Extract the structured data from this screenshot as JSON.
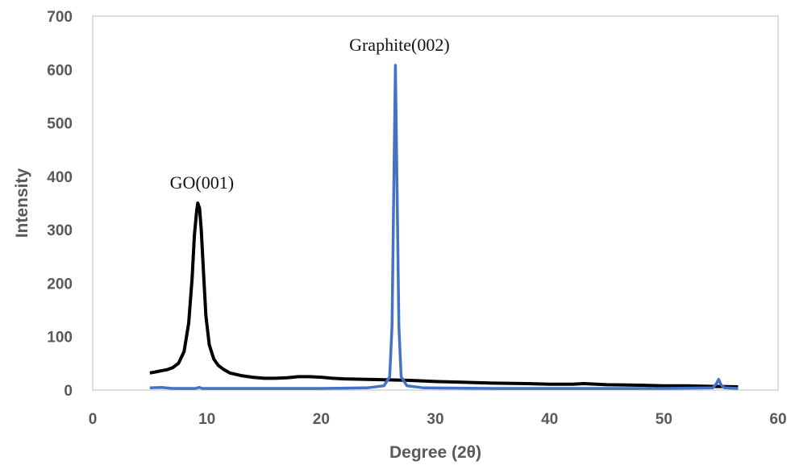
{
  "chart_data": {
    "type": "line",
    "xlabel": "Degree (2θ)",
    "ylabel": "Intensity",
    "xlim": [
      0,
      60
    ],
    "ylim": [
      0,
      700
    ],
    "xticks": [
      "0",
      "10",
      "20",
      "30",
      "40",
      "50",
      "60"
    ],
    "yticks": [
      "0",
      "100",
      "200",
      "300",
      "400",
      "500",
      "600",
      "700"
    ],
    "grid": false,
    "annotations": [
      {
        "text": "GO(001)",
        "x": 9.2,
        "y": 350
      },
      {
        "text": "Graphite(002)",
        "x": 26.5,
        "y": 608
      }
    ],
    "series": [
      {
        "color": "#000000",
        "points": [
          [
            5.0,
            32
          ],
          [
            5.5,
            34
          ],
          [
            6.0,
            36
          ],
          [
            6.5,
            38
          ],
          [
            7.0,
            42
          ],
          [
            7.5,
            50
          ],
          [
            8.0,
            72
          ],
          [
            8.4,
            125
          ],
          [
            8.7,
            210
          ],
          [
            8.9,
            290
          ],
          [
            9.1,
            335
          ],
          [
            9.2,
            350
          ],
          [
            9.35,
            340
          ],
          [
            9.5,
            300
          ],
          [
            9.7,
            220
          ],
          [
            9.9,
            140
          ],
          [
            10.2,
            85
          ],
          [
            10.6,
            58
          ],
          [
            11.0,
            46
          ],
          [
            11.5,
            38
          ],
          [
            12.0,
            32
          ],
          [
            13.0,
            27
          ],
          [
            14.0,
            24
          ],
          [
            15.0,
            22
          ],
          [
            16.0,
            22
          ],
          [
            17.0,
            23
          ],
          [
            18.0,
            25
          ],
          [
            19.0,
            25
          ],
          [
            20.0,
            24
          ],
          [
            21.0,
            22
          ],
          [
            22.0,
            21
          ],
          [
            24.0,
            20
          ],
          [
            26.0,
            19
          ],
          [
            28.0,
            18
          ],
          [
            30.0,
            16
          ],
          [
            32.0,
            15
          ],
          [
            35.0,
            13
          ],
          [
            38.0,
            12
          ],
          [
            40.0,
            11
          ],
          [
            42.0,
            11
          ],
          [
            43.0,
            12
          ],
          [
            45.0,
            10
          ],
          [
            48.0,
            9
          ],
          [
            50.0,
            8
          ],
          [
            52.0,
            8
          ],
          [
            54.0,
            7
          ],
          [
            56.5,
            6
          ]
        ]
      },
      {
        "color": "#4472C4",
        "points": [
          [
            5.0,
            4
          ],
          [
            6.0,
            5
          ],
          [
            7.0,
            3
          ],
          [
            9.0,
            3
          ],
          [
            9.3,
            5
          ],
          [
            9.6,
            3
          ],
          [
            12.0,
            3
          ],
          [
            16.0,
            3
          ],
          [
            20.0,
            3
          ],
          [
            24.0,
            4
          ],
          [
            25.5,
            8
          ],
          [
            26.0,
            25
          ],
          [
            26.2,
            120
          ],
          [
            26.4,
            450
          ],
          [
            26.5,
            608
          ],
          [
            26.6,
            450
          ],
          [
            26.8,
            120
          ],
          [
            27.0,
            25
          ],
          [
            27.5,
            8
          ],
          [
            29.0,
            4
          ],
          [
            35.0,
            3
          ],
          [
            40.0,
            3
          ],
          [
            45.0,
            3
          ],
          [
            50.0,
            3
          ],
          [
            54.3,
            4
          ],
          [
            54.6,
            12
          ],
          [
            54.8,
            20
          ],
          [
            55.0,
            10
          ],
          [
            55.3,
            4
          ],
          [
            56.5,
            3
          ]
        ]
      }
    ]
  }
}
